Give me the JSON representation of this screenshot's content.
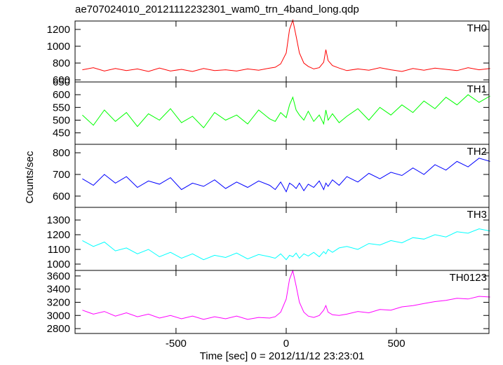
{
  "chart_data": [
    {
      "type": "line",
      "title": "ae707024010_20121112232301_wam0_trn_4band_long.qdp",
      "label": "TH0",
      "color": "#ff0000",
      "x": [
        -925,
        -875,
        -825,
        -775,
        -725,
        -675,
        -625,
        -575,
        -525,
        -475,
        -425,
        -375,
        -325,
        -275,
        -225,
        -175,
        -125,
        -75,
        -50,
        -25,
        0,
        15,
        30,
        45,
        60,
        80,
        100,
        125,
        150,
        170,
        180,
        190,
        210,
        240,
        275,
        325,
        375,
        425,
        475,
        525,
        575,
        625,
        675,
        725,
        775,
        825,
        875,
        925
      ],
      "values": [
        720,
        745,
        705,
        735,
        710,
        730,
        700,
        740,
        705,
        725,
        700,
        735,
        710,
        720,
        705,
        730,
        715,
        740,
        750,
        790,
        920,
        1200,
        1310,
        1120,
        920,
        800,
        760,
        730,
        745,
        810,
        960,
        830,
        770,
        740,
        710,
        730,
        715,
        745,
        720,
        700,
        735,
        715,
        740,
        725,
        710,
        745,
        720,
        735
      ],
      "xlim": [
        -958,
        920
      ],
      "xticks": [
        -500,
        0,
        500
      ],
      "ylim": [
        575,
        1300
      ],
      "yticks": [
        600,
        800,
        1000,
        1200
      ]
    },
    {
      "type": "line",
      "label": "TH1",
      "color": "#00ff00",
      "x": [
        -925,
        -875,
        -825,
        -775,
        -725,
        -675,
        -625,
        -575,
        -525,
        -475,
        -425,
        -375,
        -325,
        -275,
        -225,
        -175,
        -125,
        -75,
        -50,
        -25,
        0,
        15,
        30,
        45,
        60,
        80,
        100,
        125,
        150,
        170,
        180,
        190,
        210,
        240,
        275,
        325,
        375,
        425,
        475,
        525,
        575,
        625,
        675,
        725,
        775,
        825,
        875,
        925
      ],
      "values": [
        520,
        480,
        540,
        495,
        530,
        475,
        525,
        500,
        545,
        490,
        515,
        470,
        530,
        500,
        520,
        485,
        540,
        505,
        495,
        530,
        510,
        560,
        590,
        540,
        520,
        500,
        535,
        495,
        520,
        485,
        540,
        500,
        525,
        490,
        515,
        545,
        500,
        550,
        520,
        560,
        530,
        575,
        545,
        590,
        560,
        600,
        570,
        595
      ],
      "xlim": [
        -958,
        920
      ],
      "xticks": [
        -500,
        0,
        500
      ],
      "ylim": [
        405,
        650
      ],
      "yticks": [
        450,
        500,
        550,
        600,
        650
      ]
    },
    {
      "type": "line",
      "label": "TH2",
      "color": "#0000ff",
      "ylabel": "Counts/sec",
      "x": [
        -925,
        -875,
        -825,
        -775,
        -725,
        -675,
        -625,
        -575,
        -525,
        -475,
        -425,
        -375,
        -325,
        -275,
        -225,
        -175,
        -125,
        -75,
        -50,
        -25,
        0,
        15,
        30,
        45,
        60,
        80,
        100,
        125,
        150,
        170,
        180,
        190,
        210,
        240,
        275,
        325,
        375,
        425,
        475,
        525,
        575,
        625,
        675,
        725,
        775,
        825,
        875,
        925
      ],
      "values": [
        680,
        650,
        700,
        660,
        690,
        640,
        670,
        655,
        685,
        630,
        660,
        645,
        675,
        635,
        665,
        640,
        670,
        650,
        630,
        665,
        620,
        660,
        650,
        635,
        660,
        625,
        655,
        640,
        670,
        630,
        660,
        645,
        675,
        650,
        690,
        665,
        705,
        680,
        710,
        695,
        730,
        700,
        745,
        720,
        760,
        735,
        775,
        760
      ],
      "xlim": [
        -958,
        920
      ],
      "xticks": [
        -500,
        0,
        500
      ],
      "ylim": [
        548,
        839
      ],
      "yticks": [
        600,
        700,
        800
      ]
    },
    {
      "type": "line",
      "label": "TH3",
      "color": "#00ffff",
      "x": [
        -925,
        -875,
        -825,
        -775,
        -725,
        -675,
        -625,
        -575,
        -525,
        -475,
        -425,
        -375,
        -325,
        -275,
        -225,
        -175,
        -125,
        -75,
        -50,
        -25,
        0,
        15,
        30,
        45,
        60,
        80,
        100,
        125,
        150,
        170,
        180,
        190,
        210,
        240,
        275,
        325,
        375,
        425,
        475,
        525,
        575,
        625,
        675,
        725,
        775,
        825,
        875,
        925
      ],
      "values": [
        1160,
        1120,
        1150,
        1090,
        1110,
        1070,
        1100,
        1050,
        1080,
        1040,
        1070,
        1030,
        1060,
        1045,
        1075,
        1035,
        1065,
        1050,
        1040,
        1070,
        1030,
        1060,
        1050,
        1075,
        1040,
        1070,
        1055,
        1080,
        1050,
        1085,
        1070,
        1100,
        1080,
        1110,
        1120,
        1100,
        1140,
        1130,
        1160,
        1145,
        1180,
        1170,
        1200,
        1185,
        1220,
        1210,
        1240,
        1225
      ],
      "xlim": [
        -958,
        920
      ],
      "xticks": [
        -500,
        0,
        500
      ],
      "ylim": [
        957,
        1386
      ],
      "yticks": [
        1000,
        1100,
        1200,
        1300
      ]
    },
    {
      "type": "line",
      "label": "TH0123",
      "color": "#ff00ff",
      "xlabel": "Time [sec] 0 = 2012/11/12 23:23:01",
      "x": [
        -925,
        -875,
        -825,
        -775,
        -725,
        -675,
        -625,
        -575,
        -525,
        -475,
        -425,
        -375,
        -325,
        -275,
        -225,
        -175,
        -125,
        -75,
        -50,
        -25,
        0,
        15,
        30,
        45,
        60,
        80,
        100,
        125,
        150,
        170,
        180,
        190,
        210,
        240,
        275,
        325,
        375,
        425,
        475,
        525,
        575,
        625,
        675,
        725,
        775,
        825,
        875,
        925
      ],
      "values": [
        3080,
        3020,
        3060,
        2990,
        3040,
        2980,
        3020,
        2960,
        3000,
        2950,
        2990,
        2940,
        2980,
        2950,
        2990,
        2940,
        2970,
        2960,
        2980,
        3050,
        3250,
        3550,
        3680,
        3450,
        3200,
        3050,
        2990,
        2970,
        3000,
        3080,
        3150,
        3050,
        3010,
        3000,
        3020,
        3060,
        3040,
        3090,
        3080,
        3130,
        3150,
        3180,
        3210,
        3230,
        3260,
        3250,
        3290,
        3280
      ],
      "xlim": [
        -958,
        920
      ],
      "xticks": [
        -500,
        0,
        500
      ],
      "ylim": [
        2726,
        3684
      ],
      "yticks": [
        2800,
        3000,
        3200,
        3400,
        3600
      ]
    }
  ]
}
